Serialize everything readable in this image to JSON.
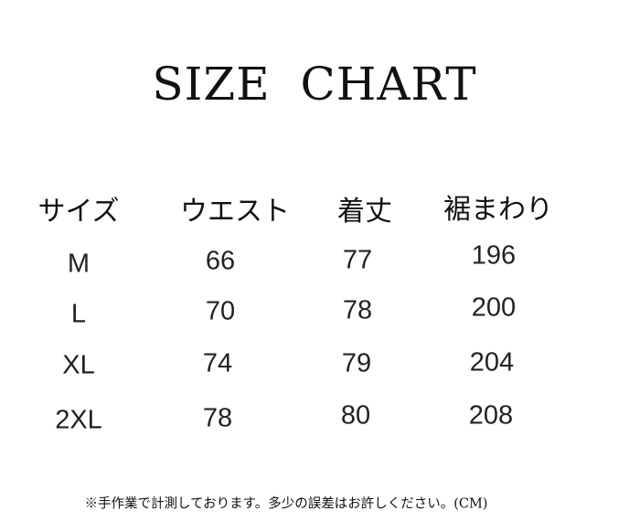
{
  "title": {
    "word1": "SIZE",
    "word2": "CHART"
  },
  "headers": [
    "サイズ",
    "ウエスト",
    "着丈",
    "裾まわり"
  ],
  "rows": [
    [
      "M",
      "66",
      "77",
      "196"
    ],
    [
      "L",
      "70",
      "78",
      "200"
    ],
    [
      "XL",
      "74",
      "79",
      "204"
    ],
    [
      "2XL",
      "78",
      "80",
      "208"
    ]
  ],
  "note": "※手作業で計測しております。多少の誤差はお許しください。(CM)"
}
